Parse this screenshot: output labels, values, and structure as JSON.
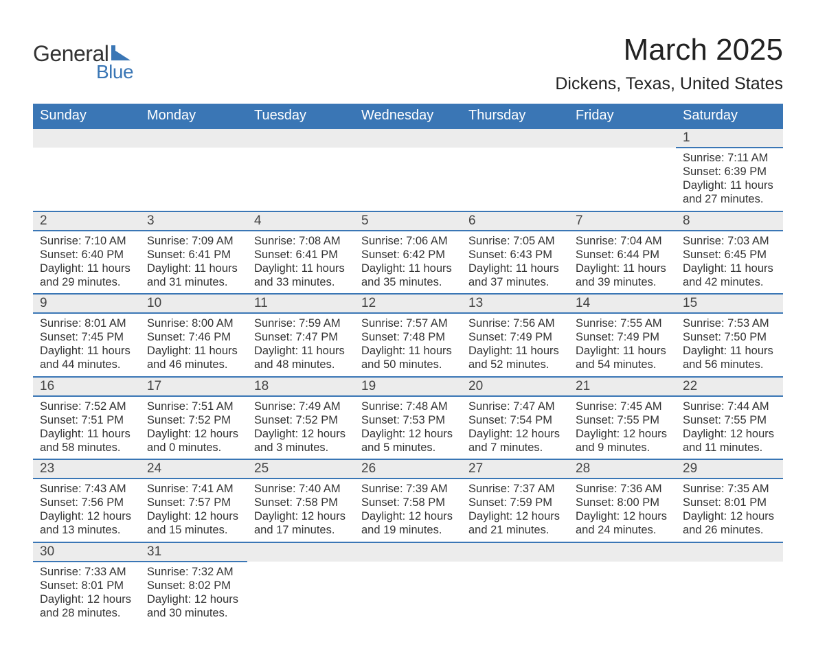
{
  "logo": {
    "text_general": "General",
    "text_blue": "Blue",
    "icon_color": "#3a76b5"
  },
  "title": "March 2025",
  "location": "Dickens, Texas, United States",
  "colors": {
    "header_bg": "#3a76b5",
    "header_text": "#ffffff",
    "daynum_bg": "#ececec",
    "row_separator": "#3a76b5",
    "body_text": "#333333",
    "page_bg": "#ffffff"
  },
  "typography": {
    "month_title_fontsize": 44,
    "location_fontsize": 25,
    "weekday_fontsize": 20,
    "daynum_fontsize": 19,
    "daydata_fontsize": 16.5
  },
  "weekdays": [
    "Sunday",
    "Monday",
    "Tuesday",
    "Wednesday",
    "Thursday",
    "Friday",
    "Saturday"
  ],
  "weeks": [
    [
      null,
      null,
      null,
      null,
      null,
      null,
      {
        "n": "1",
        "sunrise": "Sunrise: 7:11 AM",
        "sunset": "Sunset: 6:39 PM",
        "dl1": "Daylight: 11 hours",
        "dl2": "and 27 minutes."
      }
    ],
    [
      {
        "n": "2",
        "sunrise": "Sunrise: 7:10 AM",
        "sunset": "Sunset: 6:40 PM",
        "dl1": "Daylight: 11 hours",
        "dl2": "and 29 minutes."
      },
      {
        "n": "3",
        "sunrise": "Sunrise: 7:09 AM",
        "sunset": "Sunset: 6:41 PM",
        "dl1": "Daylight: 11 hours",
        "dl2": "and 31 minutes."
      },
      {
        "n": "4",
        "sunrise": "Sunrise: 7:08 AM",
        "sunset": "Sunset: 6:41 PM",
        "dl1": "Daylight: 11 hours",
        "dl2": "and 33 minutes."
      },
      {
        "n": "5",
        "sunrise": "Sunrise: 7:06 AM",
        "sunset": "Sunset: 6:42 PM",
        "dl1": "Daylight: 11 hours",
        "dl2": "and 35 minutes."
      },
      {
        "n": "6",
        "sunrise": "Sunrise: 7:05 AM",
        "sunset": "Sunset: 6:43 PM",
        "dl1": "Daylight: 11 hours",
        "dl2": "and 37 minutes."
      },
      {
        "n": "7",
        "sunrise": "Sunrise: 7:04 AM",
        "sunset": "Sunset: 6:44 PM",
        "dl1": "Daylight: 11 hours",
        "dl2": "and 39 minutes."
      },
      {
        "n": "8",
        "sunrise": "Sunrise: 7:03 AM",
        "sunset": "Sunset: 6:45 PM",
        "dl1": "Daylight: 11 hours",
        "dl2": "and 42 minutes."
      }
    ],
    [
      {
        "n": "9",
        "sunrise": "Sunrise: 8:01 AM",
        "sunset": "Sunset: 7:45 PM",
        "dl1": "Daylight: 11 hours",
        "dl2": "and 44 minutes."
      },
      {
        "n": "10",
        "sunrise": "Sunrise: 8:00 AM",
        "sunset": "Sunset: 7:46 PM",
        "dl1": "Daylight: 11 hours",
        "dl2": "and 46 minutes."
      },
      {
        "n": "11",
        "sunrise": "Sunrise: 7:59 AM",
        "sunset": "Sunset: 7:47 PM",
        "dl1": "Daylight: 11 hours",
        "dl2": "and 48 minutes."
      },
      {
        "n": "12",
        "sunrise": "Sunrise: 7:57 AM",
        "sunset": "Sunset: 7:48 PM",
        "dl1": "Daylight: 11 hours",
        "dl2": "and 50 minutes."
      },
      {
        "n": "13",
        "sunrise": "Sunrise: 7:56 AM",
        "sunset": "Sunset: 7:49 PM",
        "dl1": "Daylight: 11 hours",
        "dl2": "and 52 minutes."
      },
      {
        "n": "14",
        "sunrise": "Sunrise: 7:55 AM",
        "sunset": "Sunset: 7:49 PM",
        "dl1": "Daylight: 11 hours",
        "dl2": "and 54 minutes."
      },
      {
        "n": "15",
        "sunrise": "Sunrise: 7:53 AM",
        "sunset": "Sunset: 7:50 PM",
        "dl1": "Daylight: 11 hours",
        "dl2": "and 56 minutes."
      }
    ],
    [
      {
        "n": "16",
        "sunrise": "Sunrise: 7:52 AM",
        "sunset": "Sunset: 7:51 PM",
        "dl1": "Daylight: 11 hours",
        "dl2": "and 58 minutes."
      },
      {
        "n": "17",
        "sunrise": "Sunrise: 7:51 AM",
        "sunset": "Sunset: 7:52 PM",
        "dl1": "Daylight: 12 hours",
        "dl2": "and 0 minutes."
      },
      {
        "n": "18",
        "sunrise": "Sunrise: 7:49 AM",
        "sunset": "Sunset: 7:52 PM",
        "dl1": "Daylight: 12 hours",
        "dl2": "and 3 minutes."
      },
      {
        "n": "19",
        "sunrise": "Sunrise: 7:48 AM",
        "sunset": "Sunset: 7:53 PM",
        "dl1": "Daylight: 12 hours",
        "dl2": "and 5 minutes."
      },
      {
        "n": "20",
        "sunrise": "Sunrise: 7:47 AM",
        "sunset": "Sunset: 7:54 PM",
        "dl1": "Daylight: 12 hours",
        "dl2": "and 7 minutes."
      },
      {
        "n": "21",
        "sunrise": "Sunrise: 7:45 AM",
        "sunset": "Sunset: 7:55 PM",
        "dl1": "Daylight: 12 hours",
        "dl2": "and 9 minutes."
      },
      {
        "n": "22",
        "sunrise": "Sunrise: 7:44 AM",
        "sunset": "Sunset: 7:55 PM",
        "dl1": "Daylight: 12 hours",
        "dl2": "and 11 minutes."
      }
    ],
    [
      {
        "n": "23",
        "sunrise": "Sunrise: 7:43 AM",
        "sunset": "Sunset: 7:56 PM",
        "dl1": "Daylight: 12 hours",
        "dl2": "and 13 minutes."
      },
      {
        "n": "24",
        "sunrise": "Sunrise: 7:41 AM",
        "sunset": "Sunset: 7:57 PM",
        "dl1": "Daylight: 12 hours",
        "dl2": "and 15 minutes."
      },
      {
        "n": "25",
        "sunrise": "Sunrise: 7:40 AM",
        "sunset": "Sunset: 7:58 PM",
        "dl1": "Daylight: 12 hours",
        "dl2": "and 17 minutes."
      },
      {
        "n": "26",
        "sunrise": "Sunrise: 7:39 AM",
        "sunset": "Sunset: 7:58 PM",
        "dl1": "Daylight: 12 hours",
        "dl2": "and 19 minutes."
      },
      {
        "n": "27",
        "sunrise": "Sunrise: 7:37 AM",
        "sunset": "Sunset: 7:59 PM",
        "dl1": "Daylight: 12 hours",
        "dl2": "and 21 minutes."
      },
      {
        "n": "28",
        "sunrise": "Sunrise: 7:36 AM",
        "sunset": "Sunset: 8:00 PM",
        "dl1": "Daylight: 12 hours",
        "dl2": "and 24 minutes."
      },
      {
        "n": "29",
        "sunrise": "Sunrise: 7:35 AM",
        "sunset": "Sunset: 8:01 PM",
        "dl1": "Daylight: 12 hours",
        "dl2": "and 26 minutes."
      }
    ],
    [
      {
        "n": "30",
        "sunrise": "Sunrise: 7:33 AM",
        "sunset": "Sunset: 8:01 PM",
        "dl1": "Daylight: 12 hours",
        "dl2": "and 28 minutes."
      },
      {
        "n": "31",
        "sunrise": "Sunrise: 7:32 AM",
        "sunset": "Sunset: 8:02 PM",
        "dl1": "Daylight: 12 hours",
        "dl2": "and 30 minutes."
      },
      null,
      null,
      null,
      null,
      null
    ]
  ]
}
